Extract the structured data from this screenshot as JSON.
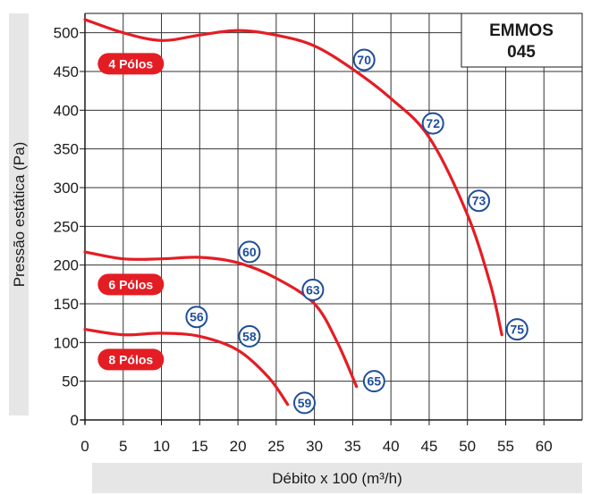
{
  "chart_data": {
    "type": "line",
    "xlabel": "Débito x 100 (m³/h)",
    "ylabel": "Pressão estática  (Pa)",
    "xlim": [
      0,
      65
    ],
    "ylim": [
      0,
      525
    ],
    "x_ticks": [
      0,
      5,
      10,
      15,
      20,
      25,
      30,
      35,
      40,
      45,
      50,
      55,
      60
    ],
    "y_ticks": [
      0,
      50,
      100,
      150,
      200,
      250,
      300,
      350,
      400,
      450,
      500
    ],
    "grid": true,
    "model_label": [
      "EMMOS",
      "045"
    ],
    "curve_color": "#e41d24",
    "marker_color": "#1f4e9a",
    "series": [
      {
        "name": "4 Pólos",
        "points": [
          [
            0,
            517
          ],
          [
            5,
            500
          ],
          [
            10,
            490
          ],
          [
            15,
            497
          ],
          [
            20,
            503
          ],
          [
            25,
            497
          ],
          [
            30,
            483
          ],
          [
            35,
            453
          ],
          [
            40,
            415
          ],
          [
            45,
            365
          ],
          [
            50,
            265
          ],
          [
            53,
            175
          ],
          [
            54.5,
            110
          ]
        ],
        "markers": [
          {
            "label": "70",
            "x": 36.5,
            "y": 465
          },
          {
            "label": "72",
            "x": 45.5,
            "y": 383
          },
          {
            "label": "73",
            "x": 51.5,
            "y": 283
          },
          {
            "label": "75",
            "x": 56.5,
            "y": 117
          }
        ],
        "tag": {
          "x": 6,
          "y": 460
        }
      },
      {
        "name": "6 Pólos",
        "points": [
          [
            0,
            217
          ],
          [
            5,
            208
          ],
          [
            10,
            208
          ],
          [
            15,
            210
          ],
          [
            20,
            203
          ],
          [
            25,
            183
          ],
          [
            30,
            150
          ],
          [
            33,
            100
          ],
          [
            35.5,
            43
          ]
        ],
        "markers": [
          {
            "label": "60",
            "x": 21.5,
            "y": 217
          },
          {
            "label": "63",
            "x": 29.8,
            "y": 168
          },
          {
            "label": "65",
            "x": 37.8,
            "y": 50
          }
        ],
        "tag": {
          "x": 6,
          "y": 175
        }
      },
      {
        "name": "8 Pólos",
        "points": [
          [
            0,
            117
          ],
          [
            5,
            110
          ],
          [
            10,
            112
          ],
          [
            15,
            108
          ],
          [
            20,
            90
          ],
          [
            24,
            55
          ],
          [
            26.5,
            20
          ]
        ],
        "markers": [
          {
            "label": "56",
            "x": 14.6,
            "y": 133
          },
          {
            "label": "58",
            "x": 21.5,
            "y": 108
          },
          {
            "label": "59",
            "x": 28.7,
            "y": 22
          }
        ],
        "tag": {
          "x": 6,
          "y": 78
        }
      }
    ]
  }
}
